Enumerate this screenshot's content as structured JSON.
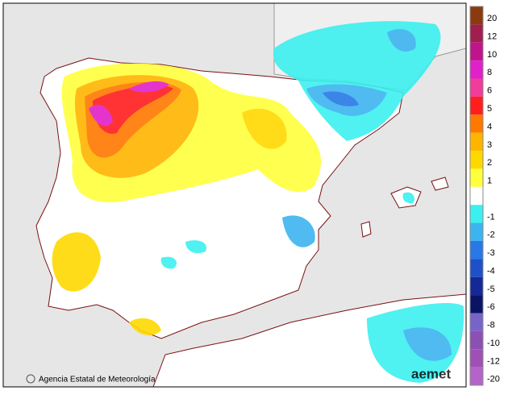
{
  "legend": {
    "items": [
      {
        "label": 20,
        "color": "#8b3a0f"
      },
      {
        "label": 12,
        "color": "#a01e50"
      },
      {
        "label": 10,
        "color": "#c0148c"
      },
      {
        "label": 8,
        "color": "#e020c8"
      },
      {
        "label": 6,
        "color": "#f03c9a"
      },
      {
        "label": 5,
        "color": "#ff1e1e"
      },
      {
        "label": 4,
        "color": "#ff7800"
      },
      {
        "label": 3,
        "color": "#ffb400"
      },
      {
        "label": 2,
        "color": "#ffd800"
      },
      {
        "label": 1,
        "color": "#ffff3c"
      },
      {
        "label": null,
        "color": "#ffffff"
      },
      {
        "label": -1,
        "color": "#3cf0f0"
      },
      {
        "label": -2,
        "color": "#3cb4f0"
      },
      {
        "label": -3,
        "color": "#2878e6"
      },
      {
        "label": -4,
        "color": "#1e50c8"
      },
      {
        "label": -5,
        "color": "#142896"
      },
      {
        "label": -6,
        "color": "#0a1464"
      },
      {
        "label": -8,
        "color": "#7864c8"
      },
      {
        "label": -10,
        "color": "#8c50b4"
      },
      {
        "label": -12,
        "color": "#a050b4"
      },
      {
        "label": -20,
        "color": "#b464c8"
      }
    ]
  },
  "credit": "Agencia Estatal de Meteorología",
  "logo": "aemet"
}
